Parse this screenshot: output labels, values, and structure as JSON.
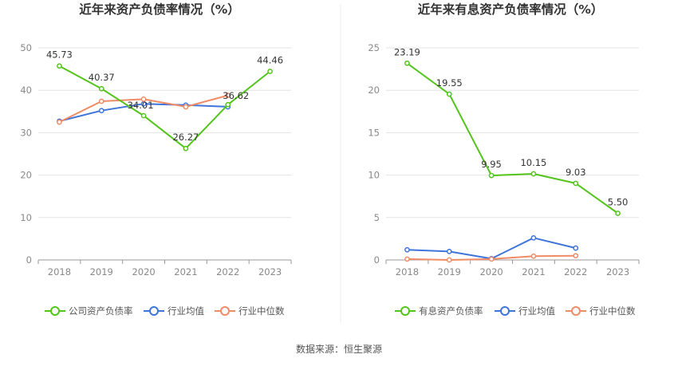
{
  "source": "数据来源：恒生聚源",
  "colors": {
    "green": "#52c41a",
    "blue": "#3f74db",
    "orange": "#f08c65",
    "grid": "#e3e3e3",
    "axis": "#999999"
  },
  "chart_data": [
    {
      "type": "line",
      "title": "近年来资产负债率情况（%）",
      "categories": [
        "2018",
        "2019",
        "2020",
        "2021",
        "2022",
        "2023"
      ],
      "ylim": [
        0,
        50
      ],
      "yticks": [
        0,
        10,
        20,
        30,
        40,
        50
      ],
      "grid": true,
      "legend_position": "bottom",
      "series": [
        {
          "name": "公司资产负债率",
          "color": "#52c41a",
          "values": [
            45.73,
            40.37,
            34.01,
            26.27,
            36.62,
            44.46
          ],
          "labels": [
            "45.73",
            "40.37",
            "34.01",
            "26.27",
            "36.62",
            "44.46"
          ]
        },
        {
          "name": "行业均值",
          "color": "#3f74db",
          "values": [
            32.7,
            35.2,
            36.8,
            36.5,
            36.1,
            null
          ]
        },
        {
          "name": "行业中位数",
          "color": "#f08c65",
          "values": [
            32.5,
            37.4,
            37.9,
            36.1,
            38.8,
            null
          ]
        }
      ]
    },
    {
      "type": "line",
      "title": "近年来有息资产负债率情况（%）",
      "categories": [
        "2018",
        "2019",
        "2020",
        "2021",
        "2022",
        "2023"
      ],
      "ylim": [
        0,
        25
      ],
      "yticks": [
        0,
        5,
        10,
        15,
        20,
        25
      ],
      "grid": true,
      "legend_position": "bottom",
      "series": [
        {
          "name": "有息资产负债率",
          "color": "#52c41a",
          "values": [
            23.19,
            19.55,
            9.95,
            10.15,
            9.03,
            5.5
          ],
          "labels": [
            "23.19",
            "19.55",
            "9.95",
            "10.15",
            "9.03",
            "5.50"
          ]
        },
        {
          "name": "行业均值",
          "color": "#3f74db",
          "values": [
            1.2,
            1.0,
            0.15,
            2.6,
            1.4,
            null
          ]
        },
        {
          "name": "行业中位数",
          "color": "#f08c65",
          "values": [
            0.1,
            0.0,
            0.1,
            0.45,
            0.5,
            null
          ]
        }
      ]
    }
  ]
}
